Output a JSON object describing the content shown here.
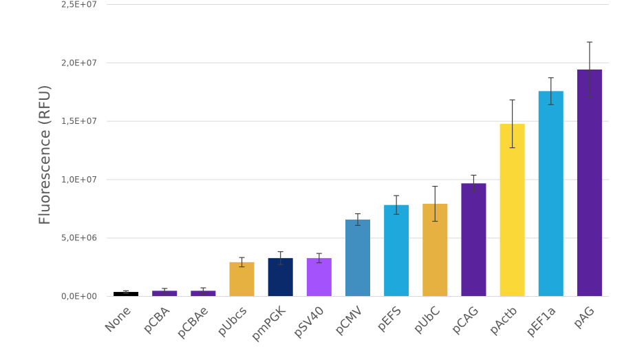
{
  "chart_data": {
    "type": "bar",
    "title": "",
    "xlabel": "",
    "ylabel": "Fluorescence (RFU)",
    "ylim": [
      0,
      25000000
    ],
    "yticks": [
      0,
      5000000,
      10000000,
      15000000,
      20000000,
      25000000
    ],
    "ytick_labels": [
      "0,0E+00",
      "5,0E+06",
      "1,0E+07",
      "1,5E+07",
      "2,0E+07",
      "2,5E+07"
    ],
    "grid": true,
    "legend": "none",
    "categories": [
      "None",
      "pCBA",
      "pCBAe",
      "pUbcs",
      "pmPGK",
      "pSV40",
      "pCMV",
      "pEFS",
      "pUbC",
      "pCAG",
      "pActb",
      "pEF1a",
      "pAG"
    ],
    "values": [
      350000,
      450000,
      450000,
      2900000,
      3250000,
      3250000,
      6550000,
      7800000,
      7900000,
      9650000,
      14750000,
      17550000,
      19400000
    ],
    "errors": [
      100000,
      200000,
      250000,
      400000,
      550000,
      400000,
      500000,
      800000,
      1500000,
      700000,
      2050000,
      1150000,
      2350000
    ],
    "colors": [
      "#000000",
      "#5a229c",
      "#5a229c",
      "#e6b140",
      "#0a2a6b",
      "#a453fc",
      "#418fc0",
      "#1ea8db",
      "#e6b140",
      "#5a229c",
      "#f9d838",
      "#1ea8db",
      "#5a229c"
    ]
  }
}
